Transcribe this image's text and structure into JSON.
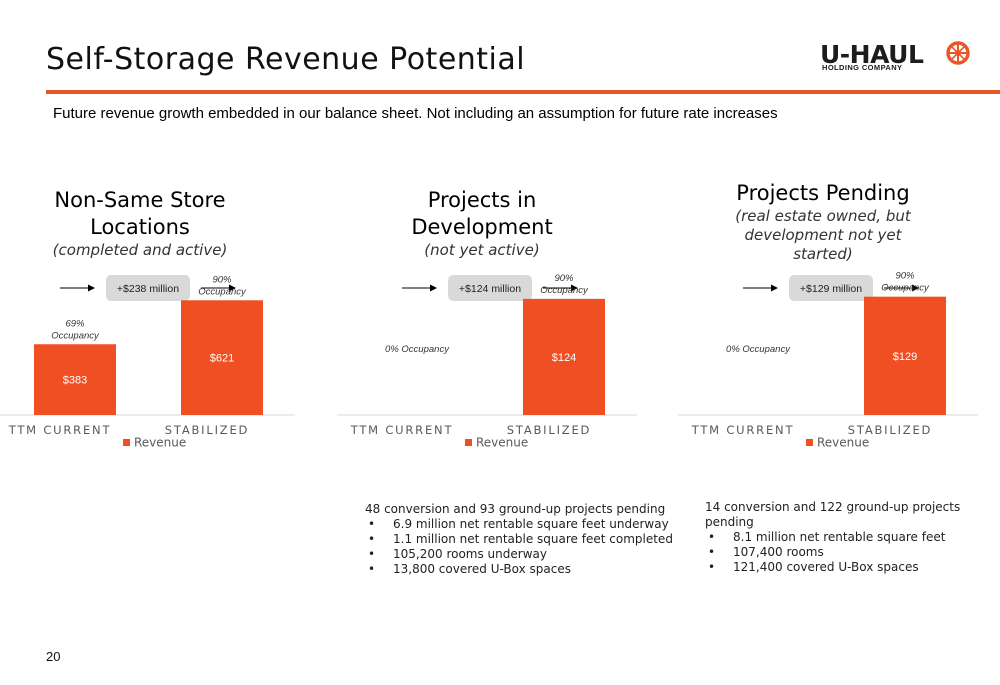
{
  "slide": {
    "title": "Self-Storage Revenue Potential",
    "subtitle": "Future revenue growth embedded in our balance sheet.  Not including an assumption for future rate increases",
    "page_number": "20"
  },
  "logo": {
    "word": "U-HAUL",
    "tagline": "HOLDING COMPANY",
    "icon": "uhaul-wheel-icon"
  },
  "colors": {
    "accent": "#e8562a",
    "bar": "#f04e23",
    "callout_bg": "#d9d9d9",
    "axis_text": "#595959"
  },
  "panels": [
    {
      "title_lines": [
        "Non-Same Store",
        "Locations"
      ],
      "subtitle_lines": [
        "(completed and active)"
      ],
      "callout": "+$238 million"
    },
    {
      "title_lines": [
        "Projects in",
        "Development"
      ],
      "subtitle_lines": [
        "(not yet active)"
      ],
      "callout": "+$124 million"
    },
    {
      "title_lines": [
        "Projects Pending"
      ],
      "subtitle_lines": [
        "(real estate owned, but",
        "development not yet",
        "started)"
      ],
      "callout": "+$129 million"
    }
  ],
  "notes": [
    {
      "heading": "48 conversion and 93 ground-up projects pending",
      "bullets": [
        "6.9 million net rentable square feet underway",
        "1.1 million net rentable square feet completed",
        "105,200 rooms underway",
        "13,800 covered U-Box spaces"
      ]
    },
    {
      "heading": "14 conversion and 122 ground-up projects pending",
      "bullets": [
        "8.1 million net rentable square feet",
        "107,400 rooms",
        "121,400 covered U-Box spaces"
      ]
    }
  ],
  "chart_data": [
    {
      "type": "bar",
      "categories": [
        "TTM CURRENT",
        "STABILIZED"
      ],
      "series": [
        {
          "name": "Revenue",
          "values": [
            383,
            621
          ],
          "labels": [
            "$383",
            "$621"
          ]
        }
      ],
      "annotations": [
        [
          "69%",
          "Occupancy"
        ],
        [
          "90%",
          "Occupancy"
        ]
      ],
      "legend": "bottom",
      "ylim": [
        0,
        720
      ]
    },
    {
      "type": "bar",
      "categories": [
        "TTM CURRENT",
        "STABILIZED"
      ],
      "series": [
        {
          "name": "Revenue",
          "values": [
            0,
            124
          ],
          "labels": [
            "",
            "$124"
          ]
        }
      ],
      "annotations": [
        [
          "0% Occupancy"
        ],
        [
          "90%",
          "Occupancy"
        ]
      ],
      "legend": "bottom",
      "ylim": [
        0,
        142
      ]
    },
    {
      "type": "bar",
      "categories": [
        "TTM CURRENT",
        "STABILIZED"
      ],
      "series": [
        {
          "name": "Revenue",
          "values": [
            0,
            129
          ],
          "labels": [
            "",
            "$129"
          ]
        }
      ],
      "annotations": [
        [
          "0% Occupancy"
        ],
        [
          "90%",
          "Occupancy"
        ]
      ],
      "legend": "bottom",
      "ylim": [
        0,
        145
      ]
    }
  ]
}
